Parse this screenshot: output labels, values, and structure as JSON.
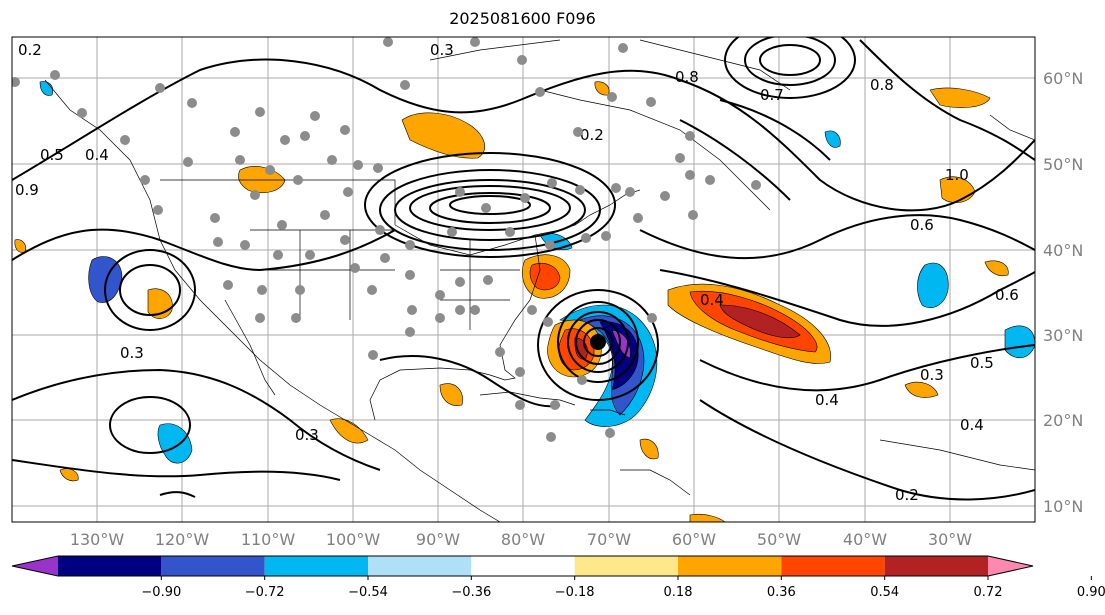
{
  "title": "2025081600 F096",
  "longitude_labels": [
    "130°W",
    "120°W",
    "110°W",
    "100°W",
    "90°W",
    "80°W",
    "70°W",
    "60°W",
    "50°W",
    "40°W",
    "30°W"
  ],
  "latitude_labels": [
    "60°N",
    "50°N",
    "40°N",
    "30°N",
    "20°N",
    "10°N"
  ],
  "colorbar": {
    "tick_labels": [
      "−0.90",
      "−0.72",
      "−0.54",
      "−0.36",
      "−0.18",
      "0.18",
      "0.36",
      "0.54",
      "0.72",
      "0.90"
    ],
    "colors": [
      "#9933cc",
      "#000080",
      "#3355cc",
      "#00b7f2",
      "#aee0f8",
      "#ffffff",
      "#ffe88a",
      "#ffa500",
      "#ff4500",
      "#b22222",
      "#ff88b0"
    ]
  },
  "contour_labels": [
    "0.2",
    "0.3",
    "0.4",
    "0.5",
    "0.6",
    "0.7",
    "0.8",
    "0.9",
    "1.0"
  ],
  "storm_marker": "black-dot",
  "station_marker_color": "#8c8c8c"
}
